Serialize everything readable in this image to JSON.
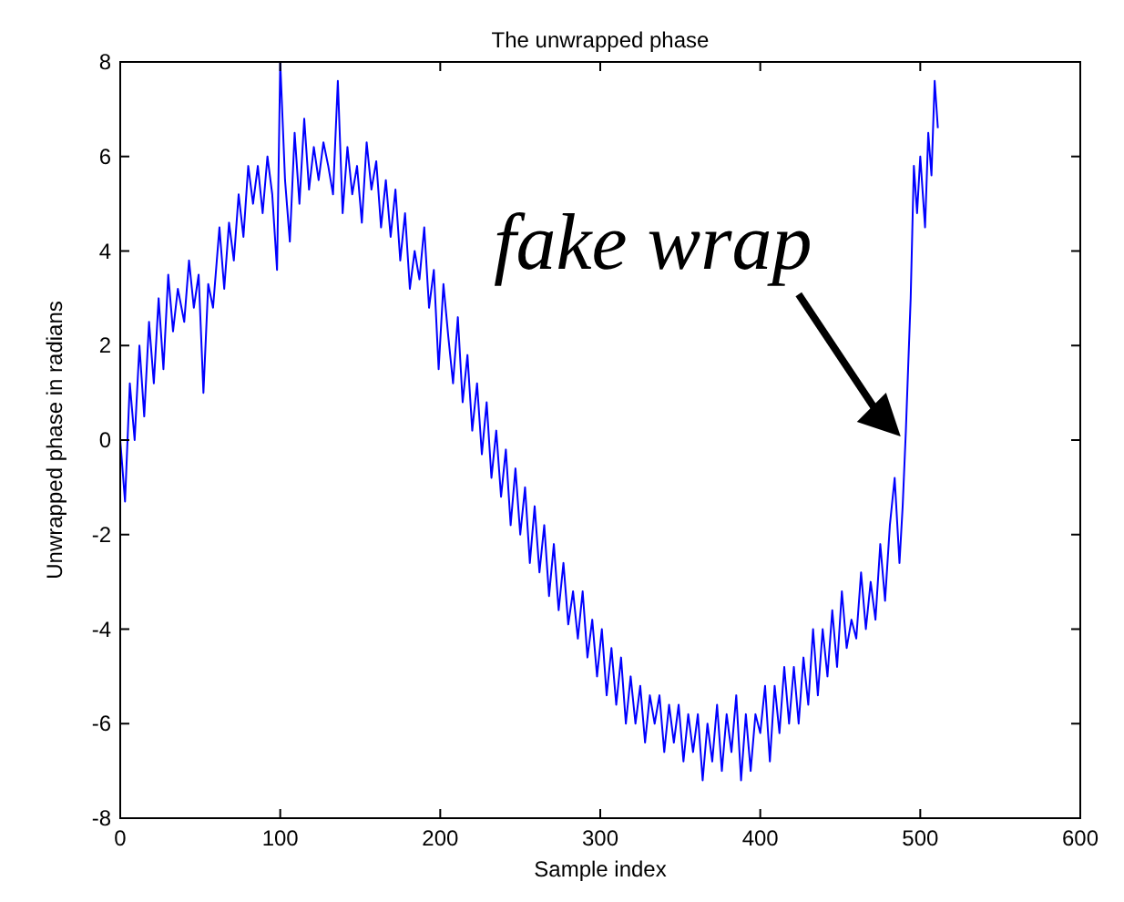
{
  "chart_data": {
    "type": "line",
    "title": "The unwrapped phase",
    "xlabel": "Sample index",
    "ylabel": "Unwrapped phase in radians",
    "xlim": [
      0,
      600
    ],
    "xticks": [
      0,
      100,
      200,
      300,
      400,
      500,
      600
    ],
    "ylim": [
      -8,
      8
    ],
    "yticks": [
      -8,
      -6,
      -4,
      -2,
      0,
      2,
      4,
      6,
      8
    ],
    "annotations": [
      {
        "text": "fake wrap",
        "x": 490,
        "y": 0
      }
    ],
    "series": [
      {
        "color": "#0000ff",
        "x": [
          0,
          3,
          6,
          9,
          12,
          15,
          18,
          21,
          24,
          27,
          30,
          33,
          36,
          40,
          43,
          46,
          49,
          52,
          55,
          58,
          62,
          65,
          68,
          71,
          74,
          77,
          80,
          83,
          86,
          89,
          92,
          95,
          98,
          100,
          103,
          106,
          109,
          112,
          115,
          118,
          121,
          124,
          127,
          130,
          133,
          136,
          139,
          142,
          145,
          148,
          151,
          154,
          157,
          160,
          163,
          166,
          169,
          172,
          175,
          178,
          181,
          184,
          187,
          190,
          193,
          196,
          199,
          202,
          205,
          208,
          211,
          214,
          217,
          220,
          223,
          226,
          229,
          232,
          235,
          238,
          241,
          244,
          247,
          250,
          253,
          256,
          259,
          262,
          265,
          268,
          271,
          274,
          277,
          280,
          283,
          286,
          289,
          292,
          295,
          298,
          301,
          304,
          307,
          310,
          313,
          316,
          319,
          322,
          325,
          328,
          331,
          334,
          337,
          340,
          343,
          346,
          349,
          352,
          355,
          358,
          361,
          364,
          367,
          370,
          373,
          376,
          379,
          382,
          385,
          388,
          391,
          394,
          397,
          400,
          403,
          406,
          409,
          412,
          415,
          418,
          421,
          424,
          427,
          430,
          433,
          436,
          439,
          442,
          445,
          448,
          451,
          454,
          457,
          460,
          463,
          466,
          469,
          472,
          475,
          478,
          481,
          484,
          487,
          489,
          491,
          494,
          496,
          498,
          500,
          503,
          505,
          507,
          509,
          511
        ],
        "values": [
          0,
          -1.3,
          1.2,
          0,
          2,
          0.5,
          2.5,
          1.2,
          3,
          1.5,
          3.5,
          2.3,
          3.2,
          2.5,
          3.8,
          2.8,
          3.5,
          1,
          3.3,
          2.8,
          4.5,
          3.2,
          4.6,
          3.8,
          5.2,
          4.3,
          5.8,
          5,
          5.8,
          4.8,
          6,
          5.2,
          3.6,
          8,
          5.5,
          4.2,
          6.5,
          5,
          6.8,
          5.3,
          6.2,
          5.5,
          6.3,
          5.8,
          5.2,
          7.6,
          4.8,
          6.2,
          5.2,
          5.8,
          4.6,
          6.3,
          5.3,
          5.9,
          4.5,
          5.5,
          4.3,
          5.3,
          3.8,
          4.8,
          3.2,
          4,
          3.4,
          4.5,
          2.8,
          3.6,
          1.5,
          3.3,
          2.2,
          1.2,
          2.6,
          0.8,
          1.8,
          0.2,
          1.2,
          -0.3,
          0.8,
          -0.8,
          0.2,
          -1.2,
          -0.2,
          -1.8,
          -0.6,
          -2,
          -1,
          -2.6,
          -1.4,
          -2.8,
          -1.8,
          -3.3,
          -2.2,
          -3.6,
          -2.6,
          -3.9,
          -3.2,
          -4.2,
          -3.2,
          -4.6,
          -3.8,
          -5,
          -4,
          -5.4,
          -4.4,
          -5.6,
          -4.6,
          -6,
          -5,
          -6,
          -5.2,
          -6.4,
          -5.4,
          -6,
          -5.4,
          -6.6,
          -5.6,
          -6.4,
          -5.6,
          -6.8,
          -5.8,
          -6.6,
          -5.8,
          -7.2,
          -6,
          -6.8,
          -5.6,
          -7,
          -5.8,
          -6.6,
          -5.4,
          -7.2,
          -5.8,
          -7,
          -5.8,
          -6.2,
          -5.2,
          -6.8,
          -5.2,
          -6.2,
          -4.8,
          -6,
          -4.8,
          -6,
          -4.6,
          -5.6,
          -4,
          -5.4,
          -4,
          -5,
          -3.6,
          -4.8,
          -3.2,
          -4.4,
          -3.8,
          -4.2,
          -2.8,
          -4,
          -3,
          -3.8,
          -2.2,
          -3.4,
          -1.8,
          -0.8,
          -2.6,
          -1.4,
          0.2,
          3,
          5.8,
          4.8,
          6,
          4.5,
          6.5,
          5.6,
          7.6,
          6.6
        ]
      }
    ]
  }
}
